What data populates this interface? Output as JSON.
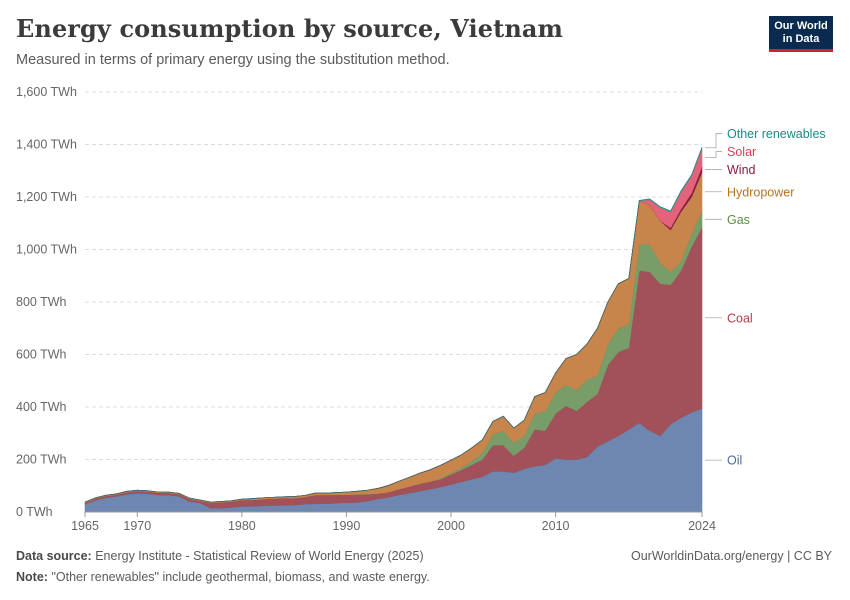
{
  "title": "Energy consumption by source, Vietnam",
  "subtitle": "Measured in terms of primary energy using the substitution method.",
  "logo": {
    "line1": "Our World",
    "line2": "in Data"
  },
  "footer": {
    "source_label": "Data source:",
    "source_text": "Energy Institute - Statistical Review of World Energy (2025)",
    "note_label": "Note:",
    "note_text": "\"Other renewables\" include geothermal, biomass, and waste energy.",
    "credit": "OurWorldinData.org/energy | CC BY"
  },
  "chart_data": {
    "type": "area",
    "stacked": true,
    "x": [
      1965,
      1966,
      1967,
      1968,
      1969,
      1970,
      1971,
      1972,
      1973,
      1974,
      1975,
      1976,
      1977,
      1978,
      1979,
      1980,
      1981,
      1982,
      1983,
      1984,
      1985,
      1986,
      1987,
      1988,
      1989,
      1990,
      1991,
      1992,
      1993,
      1994,
      1995,
      1996,
      1997,
      1998,
      1999,
      2000,
      2001,
      2002,
      2003,
      2004,
      2005,
      2006,
      2007,
      2008,
      2009,
      2010,
      2011,
      2012,
      2013,
      2014,
      2015,
      2016,
      2017,
      2018,
      2019,
      2020,
      2021,
      2022,
      2023,
      2024
    ],
    "xticks": [
      "1965",
      "1970",
      "1980",
      "1990",
      "2000",
      "2010",
      "2024"
    ],
    "yticks": [
      "0 TWh",
      "200 TWh",
      "400 TWh",
      "600 TWh",
      "800 TWh",
      "1,000 TWh",
      "1,200 TWh",
      "1,400 TWh",
      "1,600 TWh"
    ],
    "ylim": [
      0,
      1600
    ],
    "unit": "TWh",
    "grid": true,
    "legend_position": "right",
    "series": [
      {
        "name": "Oil",
        "color": "#6d87b0",
        "label_color": "#4c6a9c",
        "values": [
          30,
          45,
          55,
          60,
          68,
          72,
          70,
          65,
          65,
          60,
          40,
          35,
          15,
          15,
          18,
          22,
          22,
          24,
          25,
          26,
          27,
          30,
          32,
          32,
          34,
          36,
          37,
          42,
          50,
          56,
          65,
          72,
          80,
          88,
          95,
          105,
          115,
          125,
          135,
          155,
          155,
          150,
          165,
          175,
          180,
          205,
          200,
          200,
          210,
          250,
          270,
          290,
          315,
          340,
          310,
          290,
          335,
          360,
          380,
          395
        ]
      },
      {
        "name": "Coal",
        "color": "#a2515a",
        "label_color": "#b13d4a",
        "values": [
          5,
          6,
          6,
          6,
          8,
          8,
          8,
          8,
          8,
          8,
          10,
          8,
          20,
          22,
          22,
          24,
          24,
          25,
          26,
          27,
          26,
          27,
          33,
          33,
          32,
          30,
          30,
          26,
          20,
          20,
          22,
          25,
          28,
          28,
          30,
          38,
          45,
          55,
          65,
          100,
          100,
          65,
          80,
          140,
          130,
          170,
          205,
          185,
          210,
          200,
          290,
          320,
          310,
          580,
          605,
          580,
          530,
          560,
          630,
          690
        ]
      },
      {
        "name": "Gas",
        "color": "#789d68",
        "label_color": "#5b8f3f",
        "values": [
          0,
          0,
          0,
          0,
          0,
          0,
          0,
          0,
          0,
          0,
          0,
          0,
          0,
          0,
          0,
          0,
          0,
          0,
          0,
          0,
          0,
          0,
          0,
          0,
          0,
          0,
          0,
          0,
          0,
          0,
          0,
          0,
          0,
          0,
          3,
          5,
          8,
          15,
          25,
          40,
          55,
          50,
          45,
          60,
          75,
          80,
          80,
          80,
          85,
          70,
          80,
          90,
          90,
          100,
          105,
          80,
          50,
          35,
          50,
          60
        ]
      },
      {
        "name": "Hydropower",
        "color": "#c7854c",
        "label_color": "#b6731e",
        "values": [
          3,
          3,
          3,
          3,
          3,
          3,
          3,
          3,
          3,
          3,
          3,
          3,
          3,
          3,
          3,
          3,
          5,
          5,
          5,
          5,
          6,
          6,
          7,
          7,
          8,
          10,
          12,
          15,
          20,
          25,
          30,
          35,
          40,
          45,
          50,
          50,
          50,
          50,
          50,
          50,
          55,
          55,
          60,
          65,
          70,
          75,
          100,
          135,
          135,
          180,
          160,
          170,
          175,
          165,
          150,
          160,
          160,
          190,
          140,
          150
        ]
      },
      {
        "name": "Wind",
        "color": "#8c1a46",
        "label_color": "#8c1a46",
        "values": [
          0,
          0,
          0,
          0,
          0,
          0,
          0,
          0,
          0,
          0,
          0,
          0,
          0,
          0,
          0,
          0,
          0,
          0,
          0,
          0,
          0,
          0,
          0,
          0,
          0,
          0,
          0,
          0,
          0,
          0,
          0,
          0,
          0,
          0,
          0,
          0,
          0,
          0,
          0,
          0,
          0,
          0,
          0,
          0,
          0,
          0,
          0,
          0,
          0,
          0,
          0,
          0,
          0,
          0,
          0,
          0,
          8,
          10,
          15,
          20
        ]
      },
      {
        "name": "Solar",
        "color": "#e3637b",
        "label_color": "#d83e5e",
        "values": [
          0,
          0,
          0,
          0,
          0,
          0,
          0,
          0,
          0,
          0,
          0,
          0,
          0,
          0,
          0,
          0,
          0,
          0,
          0,
          0,
          0,
          0,
          0,
          0,
          0,
          0,
          0,
          0,
          0,
          0,
          0,
          0,
          0,
          0,
          0,
          0,
          0,
          0,
          0,
          0,
          0,
          0,
          0,
          0,
          0,
          0,
          0,
          0,
          0,
          0,
          0,
          0,
          0,
          0,
          20,
          50,
          60,
          65,
          65,
          70
        ]
      },
      {
        "name": "Other renewables",
        "color": "#3aa3a0",
        "label_color": "#1a8a86",
        "values": [
          0,
          0,
          0,
          0,
          0,
          0,
          0,
          0,
          0,
          0,
          0,
          0,
          0,
          0,
          0,
          0,
          0,
          0,
          0,
          0,
          0,
          0,
          0,
          0,
          0,
          0,
          0,
          0,
          0,
          0,
          0,
          0,
          0,
          0,
          0,
          0,
          0,
          0,
          0,
          0,
          0,
          0,
          0,
          0,
          0,
          0,
          0,
          0,
          0,
          0,
          0,
          0,
          0,
          2,
          3,
          3,
          4,
          4,
          4,
          5
        ]
      }
    ]
  }
}
